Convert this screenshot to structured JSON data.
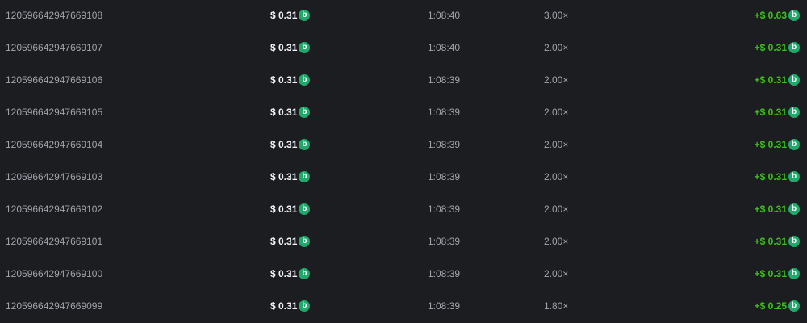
{
  "currency_icon": "bcd-coin-icon",
  "colors": {
    "background": "#1b1d21",
    "profit": "#3bc117",
    "coin": "#1fa96b"
  },
  "coin_glyph": "b",
  "rows": [
    {
      "id": "120596642947669108",
      "amount": "$ 0.31",
      "time": "1:08:40",
      "multiplier": "3.00×",
      "profit": "+$ 0.63"
    },
    {
      "id": "120596642947669107",
      "amount": "$ 0.31",
      "time": "1:08:40",
      "multiplier": "2.00×",
      "profit": "+$ 0.31"
    },
    {
      "id": "120596642947669106",
      "amount": "$ 0.31",
      "time": "1:08:39",
      "multiplier": "2.00×",
      "profit": "+$ 0.31"
    },
    {
      "id": "120596642947669105",
      "amount": "$ 0.31",
      "time": "1:08:39",
      "multiplier": "2.00×",
      "profit": "+$ 0.31"
    },
    {
      "id": "120596642947669104",
      "amount": "$ 0.31",
      "time": "1:08:39",
      "multiplier": "2.00×",
      "profit": "+$ 0.31"
    },
    {
      "id": "120596642947669103",
      "amount": "$ 0.31",
      "time": "1:08:39",
      "multiplier": "2.00×",
      "profit": "+$ 0.31"
    },
    {
      "id": "120596642947669102",
      "amount": "$ 0.31",
      "time": "1:08:39",
      "multiplier": "2.00×",
      "profit": "+$ 0.31"
    },
    {
      "id": "120596642947669101",
      "amount": "$ 0.31",
      "time": "1:08:39",
      "multiplier": "2.00×",
      "profit": "+$ 0.31"
    },
    {
      "id": "120596642947669100",
      "amount": "$ 0.31",
      "time": "1:08:39",
      "multiplier": "2.00×",
      "profit": "+$ 0.31"
    },
    {
      "id": "120596642947669099",
      "amount": "$ 0.31",
      "time": "1:08:39",
      "multiplier": "1.80×",
      "profit": "+$ 0.25"
    }
  ]
}
